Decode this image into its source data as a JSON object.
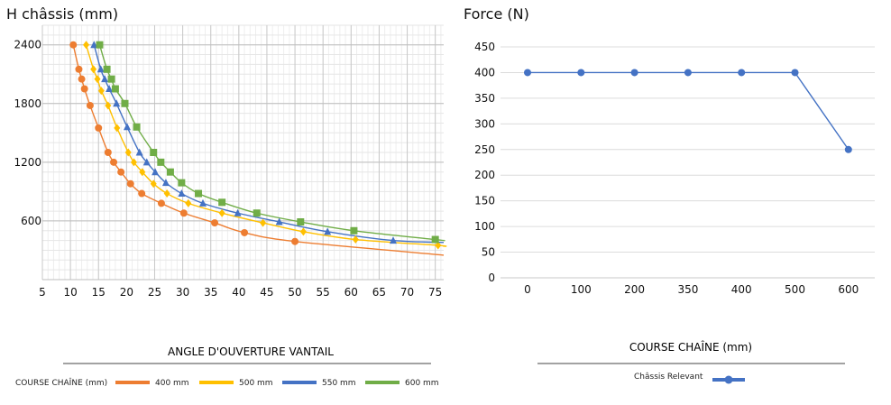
{
  "chart_data": [
    {
      "type": "line",
      "title": "H châssis (mm)",
      "xlabel": "ANGLE D'OUVERTURE VANTAIL",
      "ylabel": "H châssis (mm)",
      "x_ticks": [
        5,
        10,
        15,
        20,
        25,
        30,
        35,
        40,
        45,
        50,
        55,
        60,
        65,
        70,
        75
      ],
      "y_ticks": [
        2400,
        1800,
        1200,
        600
      ],
      "xlim": [
        5,
        76.5
      ],
      "ylim": [
        0,
        2600
      ],
      "grid": true,
      "legend_title": "COURSE CHAÎNE (mm)",
      "legend_position": "bottom",
      "series": [
        {
          "name": "400 mm",
          "color": "#ED7D31",
          "marker": "circle",
          "points": [
            [
              10.5,
              2400
            ],
            [
              11.5,
              2150
            ],
            [
              12.0,
              2050
            ],
            [
              12.5,
              1950
            ],
            [
              13.5,
              1780
            ],
            [
              15.0,
              1550
            ],
            [
              16.7,
              1300
            ],
            [
              17.7,
              1200
            ],
            [
              19.0,
              1100
            ],
            [
              20.7,
              980
            ],
            [
              22.7,
              880
            ],
            [
              26.2,
              780
            ],
            [
              30.2,
              680
            ],
            [
              35.7,
              580
            ],
            [
              41.0,
              480
            ],
            [
              50.0,
              390
            ]
          ],
          "curve_end": [
            76.5,
            250
          ]
        },
        {
          "name": "500 mm",
          "color": "#FFC000",
          "marker": "diamond",
          "points": [
            [
              12.8,
              2400
            ],
            [
              14.1,
              2150
            ],
            [
              14.8,
              2050
            ],
            [
              15.5,
              1930
            ],
            [
              16.7,
              1780
            ],
            [
              18.3,
              1550
            ],
            [
              20.3,
              1300
            ],
            [
              21.3,
              1200
            ],
            [
              22.8,
              1100
            ],
            [
              24.8,
              980
            ],
            [
              27.2,
              880
            ],
            [
              31.0,
              780
            ],
            [
              37.0,
              680
            ],
            [
              44.3,
              580
            ],
            [
              51.5,
              490
            ],
            [
              60.8,
              410
            ],
            [
              75.5,
              350
            ]
          ],
          "curve_end": [
            76.5,
            340
          ]
        },
        {
          "name": "550 mm",
          "color": "#4472C4",
          "marker": "triangle",
          "points": [
            [
              14.2,
              2400
            ],
            [
              15.4,
              2150
            ],
            [
              16.1,
              2050
            ],
            [
              16.9,
              1950
            ],
            [
              18.2,
              1800
            ],
            [
              20.1,
              1560
            ],
            [
              22.3,
              1300
            ],
            [
              23.6,
              1200
            ],
            [
              25.1,
              1100
            ],
            [
              27.0,
              990
            ],
            [
              29.8,
              880
            ],
            [
              33.6,
              780
            ],
            [
              39.8,
              680
            ],
            [
              47.2,
              590
            ],
            [
              55.8,
              490
            ],
            [
              67.5,
              400
            ]
          ],
          "curve_end": [
            76.5,
            380
          ]
        },
        {
          "name": "600 mm",
          "color": "#70AD47",
          "marker": "square",
          "points": [
            [
              15.2,
              2400
            ],
            [
              16.5,
              2150
            ],
            [
              17.3,
              2050
            ],
            [
              18.0,
              1950
            ],
            [
              19.7,
              1800
            ],
            [
              21.8,
              1560
            ],
            [
              24.8,
              1300
            ],
            [
              26.1,
              1200
            ],
            [
              27.8,
              1100
            ],
            [
              29.8,
              990
            ],
            [
              32.8,
              880
            ],
            [
              37.0,
              790
            ],
            [
              43.2,
              680
            ],
            [
              51.0,
              590
            ],
            [
              60.5,
              500
            ],
            [
              75.0,
              410
            ]
          ],
          "curve_end": [
            76.5,
            400
          ]
        }
      ]
    },
    {
      "type": "line",
      "title": "Force (N)",
      "xlabel": "COURSE CHAÎNE (mm)",
      "ylabel": "Force (N)",
      "categories": [
        "0",
        "100",
        "200",
        "350",
        "400",
        "500",
        "600"
      ],
      "y_ticks": [
        450,
        400,
        350,
        300,
        250,
        200,
        150,
        100,
        50,
        0
      ],
      "ylim": [
        0,
        450
      ],
      "grid": true,
      "legend_position": "bottom",
      "series": [
        {
          "name": "Châssis Relevant",
          "color": "#4472C4",
          "marker": "circle",
          "values": [
            400,
            400,
            400,
            400,
            400,
            400,
            250
          ]
        }
      ]
    }
  ]
}
